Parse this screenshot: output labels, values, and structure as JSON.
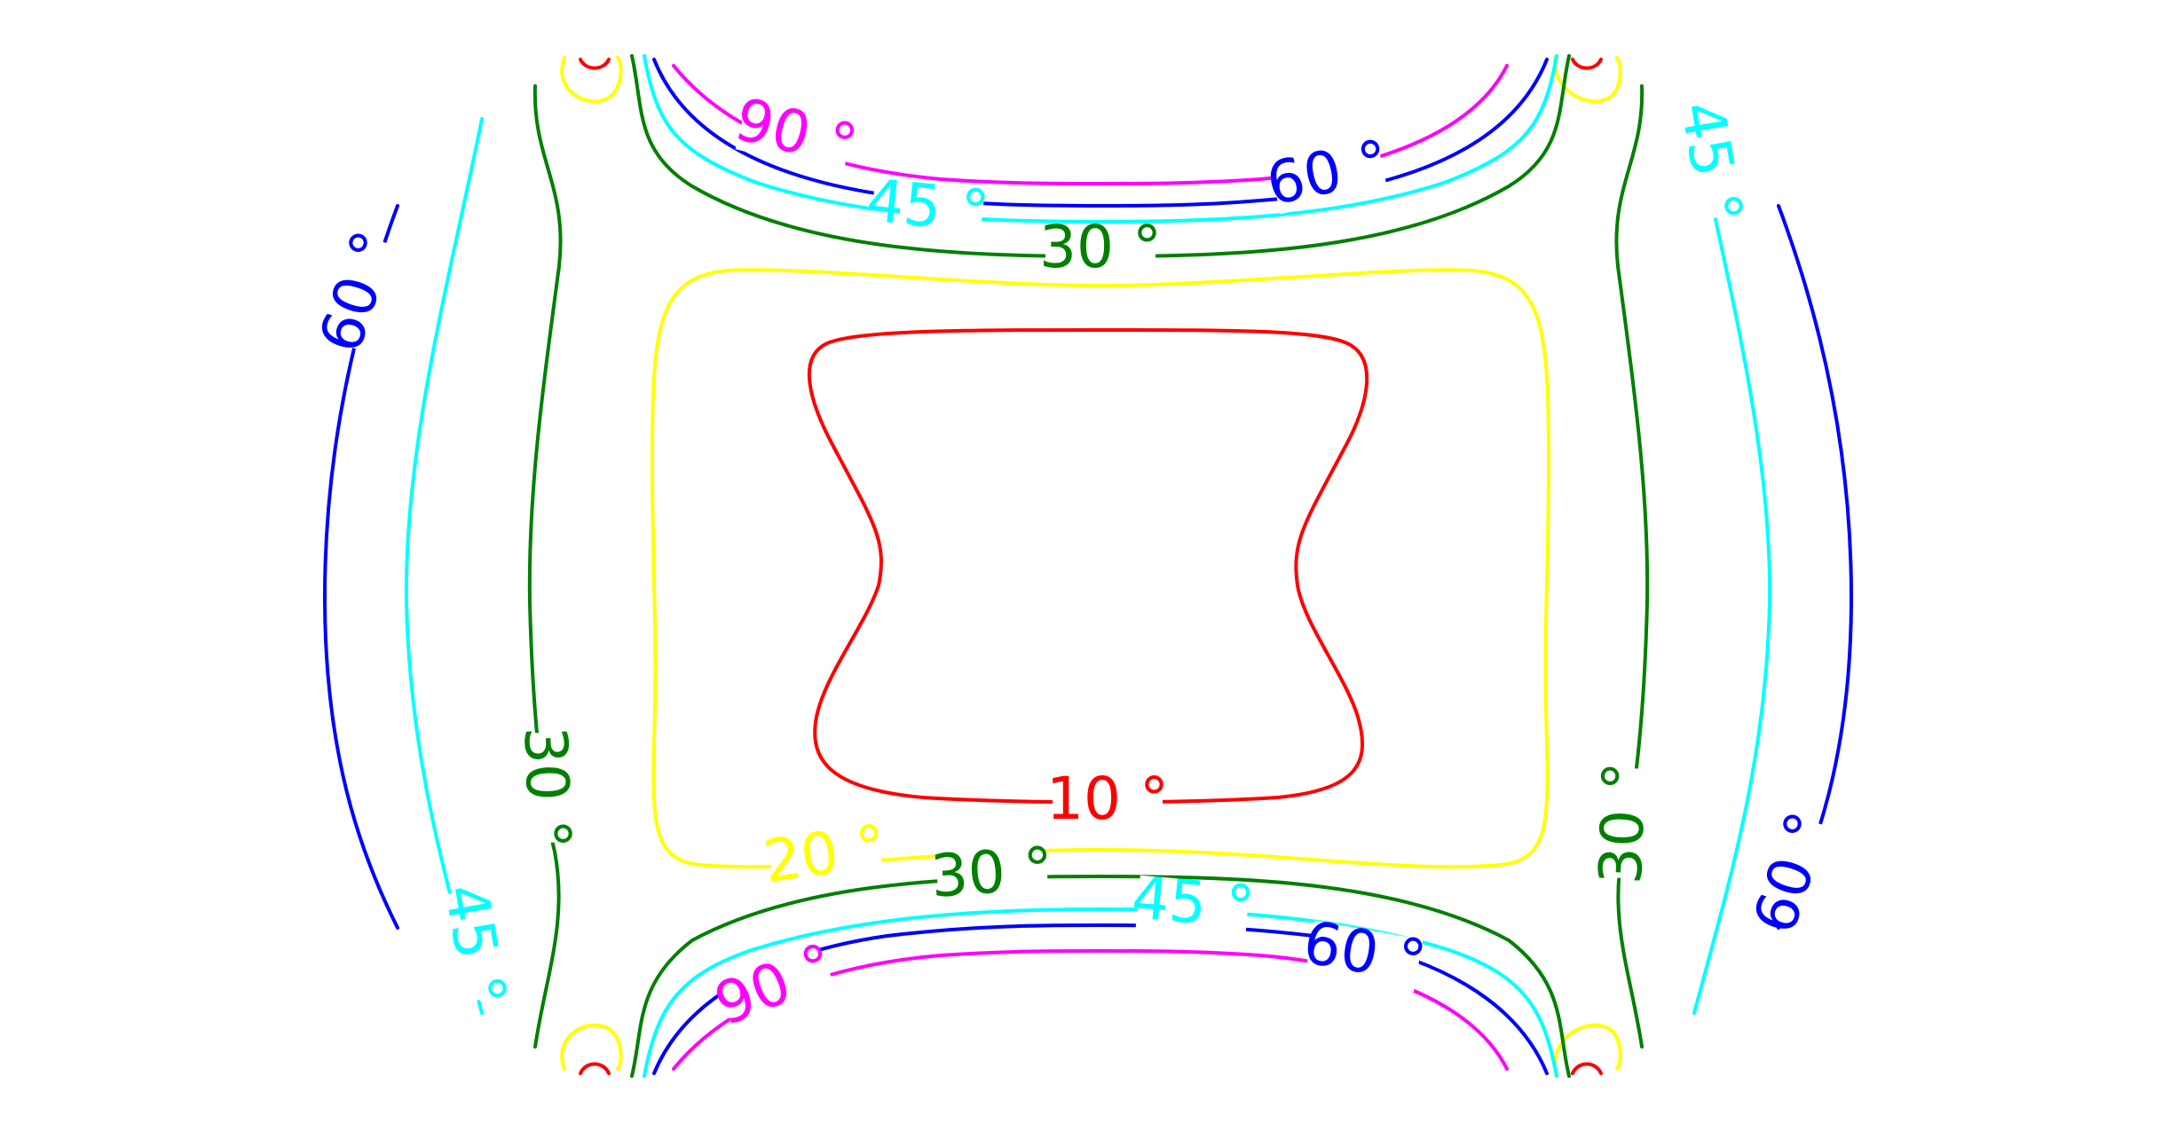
{
  "chart_data": {
    "type": "contour",
    "title": "",
    "xlabel": "",
    "ylabel": "",
    "axes_visible": false,
    "grid": false,
    "legend": "none",
    "levels": [
      {
        "value": 10,
        "label": "10 °",
        "color": "#ff0000"
      },
      {
        "value": 20,
        "label": "20 °",
        "color": "#ffff00"
      },
      {
        "value": 30,
        "label": "30 °",
        "color": "#008000"
      },
      {
        "value": 45,
        "label": "45 °",
        "color": "#00ffff"
      },
      {
        "value": 60,
        "label": "60 °",
        "color": "#0000ff"
      },
      {
        "value": 90,
        "label": "90 °",
        "color": "#ff00ff"
      }
    ]
  }
}
